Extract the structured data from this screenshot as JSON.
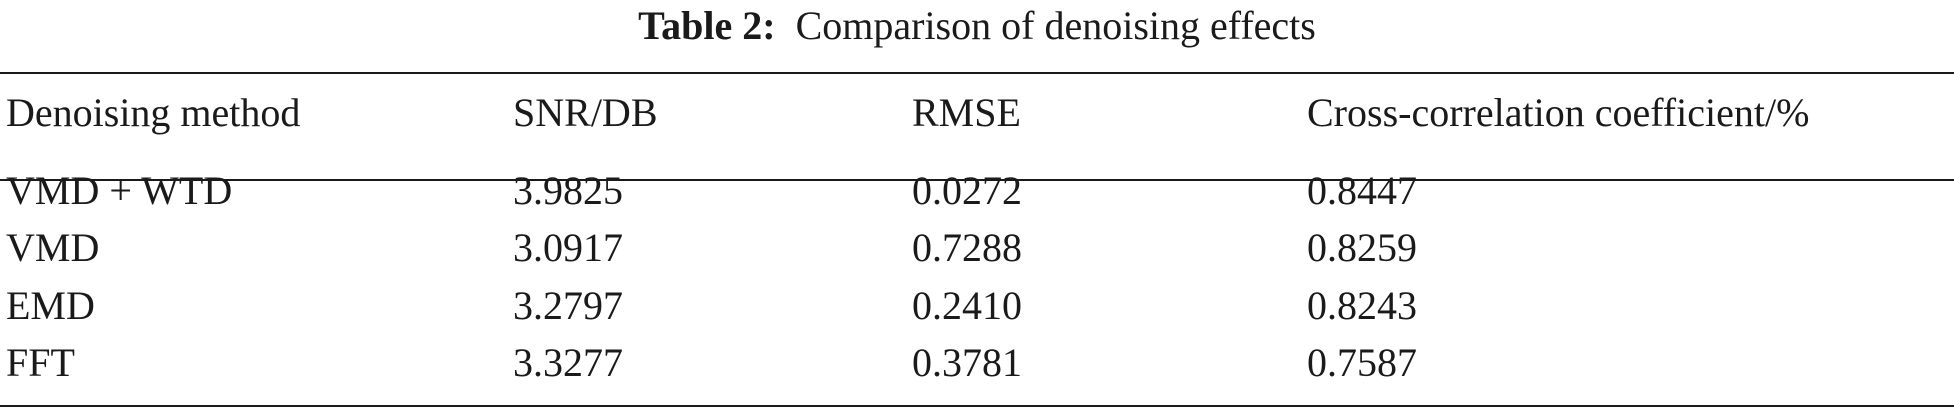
{
  "caption": {
    "label": "Table 2:",
    "text": "Comparison of denoising effects"
  },
  "table": {
    "headers": [
      "Denoising method",
      "SNR/DB",
      "RMSE",
      "Cross-correlation coefficient/%"
    ],
    "rows": [
      [
        "VMD + WTD",
        "3.9825",
        "0.0272",
        "0.8447"
      ],
      [
        "VMD",
        "3.0917",
        "0.7288",
        "0.8259"
      ],
      [
        "EMD",
        "3.2797",
        "0.2410",
        "0.8243"
      ],
      [
        "FFT",
        "3.3277",
        "0.3781",
        "0.7587"
      ]
    ]
  }
}
